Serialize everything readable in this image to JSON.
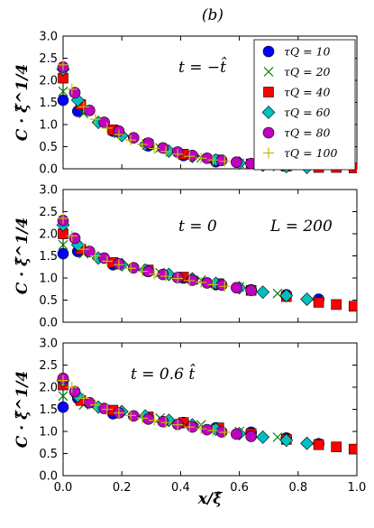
{
  "figure_label": "(b)",
  "chart_data": [
    {
      "type": "scatter",
      "ylabel": "C · ξ̂^1/4",
      "xlabel": "",
      "annotation": "t = −t̂",
      "xlim": [
        0,
        1
      ],
      "ylim": [
        0,
        3.0
      ],
      "yticks": [
        "0.0",
        "0.5",
        "1.0",
        "1.5",
        "2.0",
        "2.5",
        "3.0"
      ],
      "xticks": [],
      "legend_position": "top-right",
      "series": [
        {
          "name": "τQ = 10",
          "marker": "circle",
          "color": "#0000ff",
          "x": [
            0.0,
            0.05,
            0.17,
            0.29,
            0.41,
            0.52
          ],
          "y": [
            1.55,
            1.3,
            0.85,
            0.52,
            0.3,
            0.16
          ]
        },
        {
          "name": "τQ = 20",
          "marker": "x",
          "color": "#007f00",
          "x": [
            0.0,
            0.07,
            0.19,
            0.33,
            0.47,
            0.6,
            0.73
          ],
          "y": [
            1.75,
            1.25,
            0.8,
            0.47,
            0.25,
            0.12,
            0.05
          ]
        },
        {
          "name": "τQ = 40",
          "marker": "square",
          "color": "#ff0000",
          "x": [
            0.0,
            0.06,
            0.17,
            0.29,
            0.41,
            0.53,
            0.64,
            0.76,
            0.87,
            0.93,
            0.99
          ],
          "y": [
            2.05,
            1.45,
            0.88,
            0.55,
            0.33,
            0.2,
            0.11,
            0.06,
            0.03,
            0.03,
            0.02
          ]
        },
        {
          "name": "τQ = 60",
          "marker": "diamond",
          "color": "#00bfbf",
          "x": [
            0.0,
            0.05,
            0.12,
            0.2,
            0.28,
            0.36,
            0.44,
            0.52,
            0.6,
            0.68,
            0.76,
            0.83
          ],
          "y": [
            2.25,
            1.55,
            1.05,
            0.75,
            0.55,
            0.4,
            0.28,
            0.2,
            0.13,
            0.08,
            0.05,
            0.03
          ]
        },
        {
          "name": "τQ = 80",
          "marker": "circle",
          "color": "#bf00bf",
          "x": [
            0.0,
            0.04,
            0.09,
            0.14,
            0.19,
            0.24,
            0.29,
            0.34,
            0.39,
            0.44,
            0.49,
            0.54,
            0.59,
            0.64
          ],
          "y": [
            2.3,
            1.72,
            1.32,
            1.05,
            0.85,
            0.7,
            0.58,
            0.47,
            0.38,
            0.3,
            0.24,
            0.19,
            0.15,
            0.12
          ]
        },
        {
          "name": "τQ = 100",
          "marker": "plus",
          "color": "#bfbf00",
          "x": [
            0.0,
            0.03,
            0.07,
            0.11,
            0.15,
            0.19,
            0.23,
            0.27,
            0.31,
            0.35,
            0.39,
            0.43,
            0.47,
            0.51,
            0.55
          ],
          "y": [
            2.35,
            1.8,
            1.4,
            1.12,
            0.92,
            0.77,
            0.65,
            0.55,
            0.46,
            0.39,
            0.33,
            0.28,
            0.24,
            0.2,
            0.17
          ]
        }
      ]
    },
    {
      "type": "scatter",
      "ylabel": "C · ξ̂^1/4",
      "xlabel": "",
      "annotation": "t = 0",
      "annotation2": "L = 200",
      "xlim": [
        0,
        1
      ],
      "ylim": [
        0,
        3.0
      ],
      "yticks": [
        "0.0",
        "0.5",
        "1.0",
        "1.5",
        "2.0",
        "2.5",
        "3.0"
      ],
      "xticks": [],
      "series": [
        {
          "name": "τQ = 10",
          "marker": "circle",
          "color": "#0000ff",
          "x": [
            0.0,
            0.05,
            0.17,
            0.29,
            0.41,
            0.52,
            0.64,
            0.76,
            0.87
          ],
          "y": [
            1.55,
            1.6,
            1.3,
            1.15,
            1.0,
            0.85,
            0.73,
            0.62,
            0.52
          ]
        },
        {
          "name": "τQ = 20",
          "marker": "x",
          "color": "#007f00",
          "x": [
            0.0,
            0.07,
            0.19,
            0.33,
            0.47,
            0.6,
            0.73,
            0.87
          ],
          "y": [
            1.75,
            1.55,
            1.3,
            1.12,
            0.95,
            0.8,
            0.65,
            0.5
          ]
        },
        {
          "name": "τQ = 40",
          "marker": "square",
          "color": "#ff0000",
          "x": [
            0.0,
            0.06,
            0.17,
            0.29,
            0.41,
            0.53,
            0.64,
            0.76,
            0.87,
            0.93,
            0.99
          ],
          "y": [
            2.0,
            1.65,
            1.35,
            1.18,
            1.02,
            0.87,
            0.72,
            0.58,
            0.45,
            0.4,
            0.36
          ]
        },
        {
          "name": "τQ = 60",
          "marker": "diamond",
          "color": "#00bfbf",
          "x": [
            0.0,
            0.05,
            0.12,
            0.2,
            0.28,
            0.36,
            0.44,
            0.52,
            0.6,
            0.68,
            0.76,
            0.83
          ],
          "y": [
            2.2,
            1.75,
            1.45,
            1.3,
            1.18,
            1.08,
            0.98,
            0.88,
            0.78,
            0.68,
            0.6,
            0.52
          ]
        },
        {
          "name": "τQ = 80",
          "marker": "circle",
          "color": "#bf00bf",
          "x": [
            0.0,
            0.04,
            0.09,
            0.14,
            0.19,
            0.24,
            0.29,
            0.34,
            0.39,
            0.44,
            0.49,
            0.54,
            0.59,
            0.64
          ],
          "y": [
            2.3,
            1.9,
            1.6,
            1.45,
            1.32,
            1.23,
            1.15,
            1.08,
            1.01,
            0.95,
            0.89,
            0.84,
            0.78,
            0.72
          ]
        },
        {
          "name": "τQ = 100",
          "marker": "plus",
          "color": "#bfbf00",
          "x": [
            0.0,
            0.03,
            0.07,
            0.11,
            0.15,
            0.19,
            0.23,
            0.27,
            0.31,
            0.35,
            0.39,
            0.43,
            0.47,
            0.51,
            0.55
          ],
          "y": [
            2.35,
            1.95,
            1.65,
            1.5,
            1.38,
            1.3,
            1.22,
            1.15,
            1.09,
            1.04,
            0.99,
            0.94,
            0.9,
            0.85,
            0.81
          ]
        }
      ]
    },
    {
      "type": "scatter",
      "ylabel": "C · ξ̂^1/4",
      "xlabel": "x/ξ̂",
      "annotation": "t = 0.6 t̂",
      "xlim": [
        0,
        1
      ],
      "ylim": [
        0,
        3.0
      ],
      "yticks": [
        "0.0",
        "0.5",
        "1.0",
        "1.5",
        "2.0",
        "2.5",
        "3.0"
      ],
      "xticks": [
        "0.0",
        "0.2",
        "0.4",
        "0.6",
        "0.8",
        "1.0"
      ],
      "series": [
        {
          "name": "τQ = 10",
          "marker": "circle",
          "color": "#0000ff",
          "x": [
            0.0,
            0.05,
            0.17,
            0.29,
            0.41,
            0.52,
            0.64,
            0.76,
            0.87
          ],
          "y": [
            1.55,
            1.75,
            1.4,
            1.3,
            1.2,
            1.08,
            0.98,
            0.85,
            0.72
          ]
        },
        {
          "name": "τQ = 20",
          "marker": "x",
          "color": "#007f00",
          "x": [
            0.0,
            0.07,
            0.19,
            0.33,
            0.47,
            0.6,
            0.73,
            0.87
          ],
          "y": [
            1.8,
            1.6,
            1.45,
            1.3,
            1.15,
            1.0,
            0.87,
            0.72
          ]
        },
        {
          "name": "τQ = 40",
          "marker": "square",
          "color": "#ff0000",
          "x": [
            0.0,
            0.06,
            0.17,
            0.29,
            0.41,
            0.53,
            0.64,
            0.76,
            0.87,
            0.93,
            0.99
          ],
          "y": [
            2.05,
            1.7,
            1.48,
            1.33,
            1.2,
            1.08,
            0.95,
            0.82,
            0.7,
            0.65,
            0.6
          ]
        },
        {
          "name": "τQ = 60",
          "marker": "diamond",
          "color": "#00bfbf",
          "x": [
            0.0,
            0.05,
            0.12,
            0.2,
            0.28,
            0.36,
            0.44,
            0.52,
            0.6,
            0.68,
            0.76,
            0.83
          ],
          "y": [
            2.15,
            1.8,
            1.55,
            1.45,
            1.35,
            1.25,
            1.15,
            1.05,
            0.95,
            0.87,
            0.8,
            0.73
          ]
        },
        {
          "name": "τQ = 80",
          "marker": "circle",
          "color": "#bf00bf",
          "x": [
            0.0,
            0.04,
            0.09,
            0.14,
            0.19,
            0.24,
            0.29,
            0.34,
            0.39,
            0.44,
            0.49,
            0.54,
            0.59,
            0.64
          ],
          "y": [
            2.2,
            1.9,
            1.65,
            1.52,
            1.42,
            1.35,
            1.28,
            1.22,
            1.16,
            1.1,
            1.04,
            0.99,
            0.94,
            0.89
          ]
        },
        {
          "name": "τQ = 100",
          "marker": "plus",
          "color": "#bfbf00",
          "x": [
            0.0,
            0.03,
            0.07,
            0.11,
            0.15,
            0.19,
            0.23,
            0.27,
            0.31,
            0.35,
            0.39,
            0.43,
            0.47,
            0.51,
            0.55
          ],
          "y": [
            2.15,
            2.0,
            1.75,
            1.6,
            1.5,
            1.42,
            1.36,
            1.3,
            1.25,
            1.2,
            1.15,
            1.1,
            1.06,
            1.02,
            0.98
          ]
        }
      ]
    }
  ]
}
